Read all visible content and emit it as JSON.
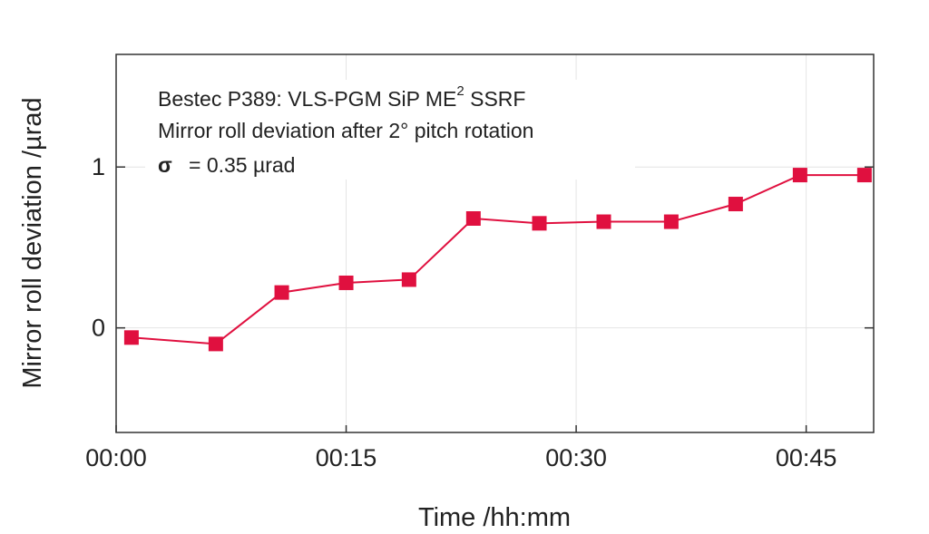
{
  "chart_data": {
    "type": "line",
    "title": "",
    "annotation": {
      "line1": "Bestec P389: VLS-PGM SiP ME",
      "line1_sup": "2",
      "line1_end": " SSRF",
      "line2": "Mirror roll deviation after 2° pitch rotation",
      "sigma_symbol": "σ",
      "sigma_text": "= 0.35 µrad"
    },
    "xlabel": "Time /hh:mm",
    "ylabel": "Mirror roll deviation /µrad",
    "xlim_minutes": [
      0,
      49.4
    ],
    "ylim": [
      -0.65,
      1.7
    ],
    "x_ticks": [
      {
        "value": 0,
        "label": "00:00"
      },
      {
        "value": 15,
        "label": "00:15"
      },
      {
        "value": 30,
        "label": "00:30"
      },
      {
        "value": 45,
        "label": "00:45"
      }
    ],
    "y_ticks": [
      {
        "value": 0,
        "label": "0"
      },
      {
        "value": 1,
        "label": "1"
      }
    ],
    "grid": true,
    "series": [
      {
        "name": "roll deviation",
        "color": "#e0103f",
        "marker": "square",
        "x_minutes": [
          1.0,
          6.5,
          10.8,
          15.0,
          19.1,
          23.3,
          27.6,
          31.8,
          36.2,
          40.4,
          44.6,
          48.8
        ],
        "values": [
          -0.06,
          -0.1,
          0.22,
          0.28,
          0.3,
          0.68,
          0.65,
          0.66,
          0.66,
          0.77,
          0.95,
          0.95
        ]
      }
    ]
  }
}
